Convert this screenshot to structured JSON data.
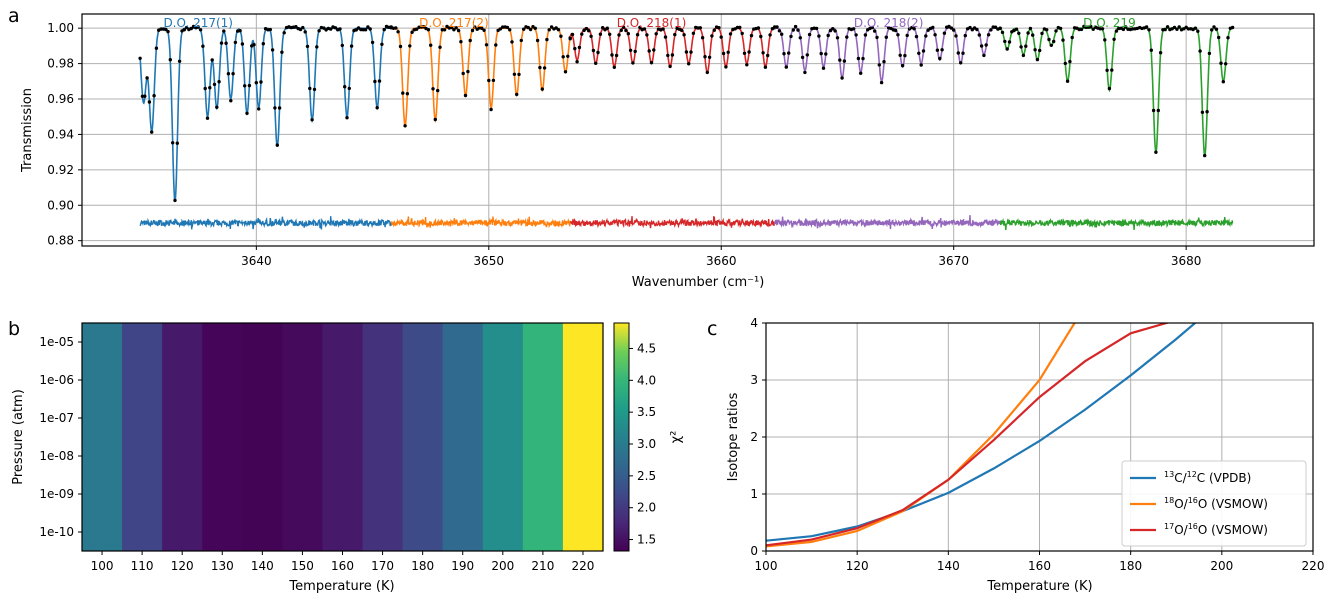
{
  "panel_labels": {
    "a": "a",
    "b": "b",
    "c": "c"
  },
  "chart_data": [
    {
      "panel": "a",
      "type": "line",
      "xlabel": "Wavenumber (cm⁻¹)",
      "ylabel": "Transmission",
      "xlim": [
        3632.5,
        3685.5
      ],
      "ylim": [
        0.877,
        1.008
      ],
      "xticks": [
        3640,
        3650,
        3660,
        3670,
        3680
      ],
      "yticks": [
        0.88,
        0.9,
        0.92,
        0.94,
        0.96,
        0.98,
        1.0
      ],
      "grid": true,
      "baseline": 1.0,
      "residual_offset": 0.89,
      "segments": [
        {
          "name": "D.O. 217(1)",
          "color": "#1f77b4",
          "range": [
            3635.0,
            3645.8
          ],
          "label_x": 3637.5,
          "lines": [
            [
              3635.15,
              0.042
            ],
            [
              3635.5,
              0.058
            ],
            [
              3636.5,
              0.098
            ],
            [
              3637.9,
              0.05
            ],
            [
              3638.3,
              0.045
            ],
            [
              3638.9,
              0.04
            ],
            [
              3639.6,
              0.048
            ],
            [
              3640.1,
              0.045
            ],
            [
              3640.9,
              0.067
            ],
            [
              3642.4,
              0.052
            ],
            [
              3643.9,
              0.05
            ],
            [
              3645.2,
              0.045
            ]
          ]
        },
        {
          "name": "D.O. 217(2)",
          "color": "#ff7f0e",
          "range": [
            3645.8,
            3653.5
          ],
          "label_x": 3648.5,
          "lines": [
            [
              3646.4,
              0.055
            ],
            [
              3647.7,
              0.052
            ],
            [
              3649.0,
              0.038
            ],
            [
              3650.1,
              0.045
            ],
            [
              3651.2,
              0.038
            ],
            [
              3652.3,
              0.035
            ],
            [
              3653.3,
              0.025
            ]
          ]
        },
        {
          "name": "D.O. 218(1)",
          "color": "#d62728",
          "range": [
            3653.5,
            3662.3
          ],
          "label_x": 3657.0,
          "lines": [
            [
              3653.8,
              0.018
            ],
            [
              3654.6,
              0.02
            ],
            [
              3655.4,
              0.022
            ],
            [
              3656.2,
              0.02
            ],
            [
              3657.0,
              0.02
            ],
            [
              3657.8,
              0.022
            ],
            [
              3658.6,
              0.02
            ],
            [
              3659.4,
              0.025
            ],
            [
              3660.2,
              0.022
            ],
            [
              3661.1,
              0.02
            ],
            [
              3661.9,
              0.022
            ]
          ]
        },
        {
          "name": "D.O. 218(2)",
          "color": "#9467bd",
          "range": [
            3662.3,
            3672.0
          ],
          "label_x": 3667.2,
          "lines": [
            [
              3662.8,
              0.022
            ],
            [
              3663.6,
              0.024
            ],
            [
              3664.4,
              0.022
            ],
            [
              3665.2,
              0.028
            ],
            [
              3666.0,
              0.025
            ],
            [
              3666.9,
              0.03
            ],
            [
              3667.8,
              0.022
            ],
            [
              3668.6,
              0.02
            ],
            [
              3669.4,
              0.018
            ],
            [
              3670.3,
              0.02
            ],
            [
              3671.3,
              0.015
            ]
          ]
        },
        {
          "name": "D.O. 219",
          "color": "#2ca02c",
          "range": [
            3672.0,
            3682.0
          ],
          "label_x": 3676.7,
          "lines": [
            [
              3672.3,
              0.012
            ],
            [
              3673.0,
              0.015
            ],
            [
              3673.6,
              0.018
            ],
            [
              3674.2,
              0.01
            ],
            [
              3674.9,
              0.03
            ],
            [
              3676.7,
              0.035
            ],
            [
              3678.7,
              0.07
            ],
            [
              3680.8,
              0.072
            ],
            [
              3681.6,
              0.03
            ]
          ]
        }
      ]
    },
    {
      "panel": "b",
      "type": "heatmap",
      "xlabel": "Temperature (K)",
      "ylabel": "Pressure (atm)",
      "colorbar_label": "χ²",
      "x": [
        100,
        110,
        120,
        130,
        140,
        150,
        160,
        170,
        180,
        190,
        200,
        210,
        220
      ],
      "y_ticks": [
        "1e-05",
        "1e-06",
        "1e-07",
        "1e-08",
        "1e-09",
        "1e-10"
      ],
      "values": [
        2.95,
        2.15,
        1.6,
        1.38,
        1.35,
        1.42,
        1.6,
        1.9,
        2.25,
        2.7,
        3.3,
        3.95,
        4.9
      ],
      "colorbar_range": [
        1.32,
        4.9
      ],
      "colorbar_ticks": [
        "1.5",
        "2.0",
        "2.5",
        "3.0",
        "3.5",
        "4.0",
        "4.5"
      ]
    },
    {
      "panel": "c",
      "type": "line",
      "xlabel": "Temperature (K)",
      "ylabel": "Isotope ratios",
      "xlim": [
        100,
        220
      ],
      "ylim": [
        0,
        4
      ],
      "xticks": [
        100,
        120,
        140,
        160,
        180,
        200,
        220
      ],
      "yticks": [
        0,
        1,
        2,
        3,
        4
      ],
      "grid": true,
      "legend_position": "lower-right",
      "series": [
        {
          "sup1": "13",
          "mid": "C/",
          "sup2": "12",
          "tail": "C (VPDB)",
          "color": "#1f77b4",
          "x": [
            100,
            110,
            120,
            130,
            140,
            150,
            160,
            170,
            180,
            190,
            200
          ],
          "y": [
            0.18,
            0.26,
            0.43,
            0.7,
            1.02,
            1.45,
            1.93,
            2.48,
            3.08,
            3.72,
            4.4
          ]
        },
        {
          "sup1": "18",
          "mid": "O/",
          "sup2": "16",
          "tail": "O (VSMOW)",
          "color": "#ff7f0e",
          "x": [
            100,
            110,
            120,
            130,
            140,
            150,
            160,
            170
          ],
          "y": [
            0.08,
            0.16,
            0.35,
            0.7,
            1.25,
            2.05,
            3.0,
            4.3
          ]
        },
        {
          "sup1": "17",
          "mid": "O/",
          "sup2": "16",
          "tail": "O (VSMOW)",
          "color": "#d62728",
          "x": [
            100,
            110,
            120,
            130,
            140,
            150,
            160,
            170,
            180,
            190
          ],
          "y": [
            0.1,
            0.2,
            0.4,
            0.72,
            1.25,
            1.95,
            2.7,
            3.33,
            3.82,
            4.05
          ]
        }
      ]
    }
  ]
}
